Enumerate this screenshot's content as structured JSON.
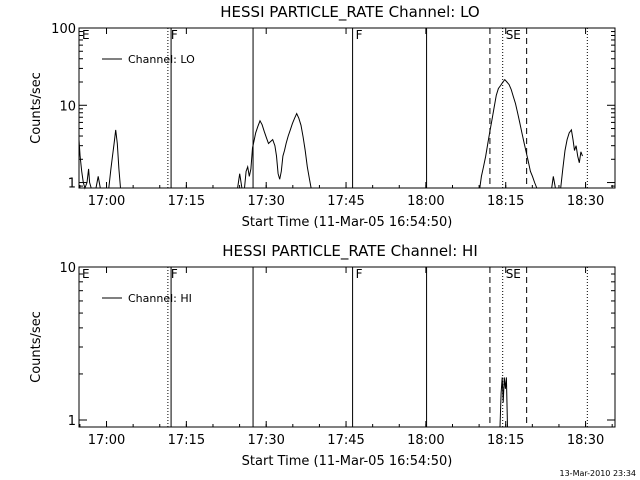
{
  "chart_data": [
    {
      "type": "line",
      "title": "HESSI PARTICLE_RATE Channel: LO",
      "xlabel": "Start Time (11-Mar-05 16:54:50)",
      "ylabel": "Counts/sec",
      "x_ticks": [
        "17:00",
        "17:15",
        "17:30",
        "17:45",
        "18:00",
        "18:15",
        "18:30"
      ],
      "x_tick_minutes": [
        5.17,
        20.17,
        35.17,
        50.17,
        65.17,
        80.17,
        95.17
      ],
      "xlim_minutes": [
        0,
        100.7
      ],
      "y_scale": "log",
      "ylim": [
        0.85,
        100
      ],
      "y_ticks": [
        "1",
        "10",
        "100"
      ],
      "y_tick_values": [
        1,
        10,
        100
      ],
      "legend": [
        {
          "name": "Channel: LO",
          "position": "top-left"
        }
      ],
      "series": [
        {
          "name": "Channel: LO",
          "segments": [
            [
              [
                0.0,
                3.6
              ],
              [
                0.2,
                2.2
              ],
              [
                0.5,
                1.4
              ],
              [
                0.8,
                1.0
              ],
              [
                1.1,
                0.85
              ],
              [
                1.5,
                1.0
              ],
              [
                1.8,
                1.5
              ],
              [
                2.0,
                1.0
              ],
              [
                2.3,
                0.85
              ]
            ],
            [
              [
                3.2,
                0.85
              ],
              [
                3.6,
                1.2
              ],
              [
                4.0,
                0.85
              ]
            ],
            [
              [
                5.6,
                0.85
              ],
              [
                6.0,
                1.5
              ],
              [
                6.3,
                2.2
              ],
              [
                6.6,
                3.2
              ],
              [
                6.9,
                4.8
              ],
              [
                7.2,
                3.2
              ],
              [
                7.5,
                1.5
              ],
              [
                7.8,
                0.85
              ]
            ],
            [
              [
                29.8,
                0.85
              ],
              [
                30.2,
                1.3
              ],
              [
                30.6,
                0.85
              ]
            ],
            [
              [
                31.1,
                0.85
              ],
              [
                31.4,
                1.4
              ],
              [
                31.7,
                1.6
              ],
              [
                32.0,
                1.2
              ],
              [
                32.3,
                1.5
              ],
              [
                32.6,
                2.8
              ],
              [
                32.9,
                3.5
              ],
              [
                33.2,
                4.4
              ],
              [
                33.6,
                5.3
              ],
              [
                34.0,
                6.3
              ],
              [
                34.4,
                5.6
              ],
              [
                34.8,
                4.6
              ],
              [
                35.2,
                3.8
              ],
              [
                35.6,
                3.2
              ],
              [
                36.0,
                3.4
              ],
              [
                36.4,
                3.6
              ],
              [
                36.8,
                3.0
              ],
              [
                37.1,
                2.2
              ],
              [
                37.4,
                1.3
              ],
              [
                37.7,
                1.1
              ],
              [
                38.0,
                1.4
              ],
              [
                38.3,
                2.2
              ],
              [
                38.6,
                2.6
              ],
              [
                38.9,
                3.2
              ],
              [
                39.3,
                4.0
              ],
              [
                39.7,
                4.8
              ],
              [
                40.1,
                5.8
              ],
              [
                40.5,
                6.8
              ],
              [
                40.9,
                7.8
              ],
              [
                41.3,
                6.8
              ],
              [
                41.7,
                5.5
              ],
              [
                42.1,
                3.9
              ],
              [
                42.5,
                2.6
              ],
              [
                42.9,
                1.6
              ],
              [
                43.3,
                1.1
              ],
              [
                43.6,
                0.85
              ]
            ],
            [
              [
                75.3,
                0.85
              ],
              [
                75.6,
                1.2
              ],
              [
                76.0,
                1.6
              ],
              [
                76.4,
                2.2
              ],
              [
                76.8,
                3.2
              ],
              [
                77.2,
                4.6
              ],
              [
                77.6,
                6.5
              ],
              [
                78.0,
                9.5
              ],
              [
                78.4,
                13.5
              ],
              [
                78.8,
                16.5
              ],
              [
                79.2,
                18.0
              ],
              [
                79.6,
                19.8
              ],
              [
                80.0,
                21.5
              ],
              [
                80.4,
                20.0
              ],
              [
                80.8,
                18.5
              ],
              [
                81.2,
                16.0
              ],
              [
                81.6,
                13.0
              ],
              [
                82.0,
                10.5
              ],
              [
                82.4,
                8.0
              ],
              [
                82.8,
                6.0
              ],
              [
                83.2,
                4.4
              ],
              [
                83.6,
                3.3
              ],
              [
                84.0,
                2.5
              ],
              [
                84.4,
                1.9
              ],
              [
                84.8,
                1.4
              ],
              [
                85.2,
                1.2
              ],
              [
                85.6,
                1.0
              ],
              [
                86.0,
                0.85
              ]
            ],
            [
              [
                88.8,
                0.85
              ],
              [
                89.1,
                1.2
              ],
              [
                89.5,
                0.85
              ]
            ],
            [
              [
                90.5,
                0.85
              ],
              [
                90.9,
                1.5
              ],
              [
                91.3,
                2.6
              ],
              [
                91.7,
                3.6
              ],
              [
                92.1,
                4.4
              ],
              [
                92.5,
                4.8
              ],
              [
                92.8,
                3.6
              ],
              [
                93.1,
                2.6
              ],
              [
                93.4,
                3.0
              ],
              [
                93.7,
                2.2
              ],
              [
                94.0,
                1.8
              ],
              [
                94.3,
                2.5
              ],
              [
                94.6,
                2.2
              ]
            ]
          ]
        }
      ],
      "markers": [
        {
          "label": "E",
          "minute": 0.0,
          "style": "none"
        },
        {
          "label": "F",
          "minute": 16.7,
          "style": "dotted"
        },
        {
          "label": "",
          "minute": 17.3,
          "style": "solid"
        },
        {
          "label": "",
          "minute": 32.7,
          "style": "solid"
        },
        {
          "label": "F",
          "minute": 51.4,
          "style": "solid"
        },
        {
          "label": "",
          "minute": 65.3,
          "style": "solid"
        },
        {
          "label": "",
          "minute": 77.2,
          "style": "dashed"
        },
        {
          "label": "SE",
          "minute": 79.6,
          "style": "dotted"
        },
        {
          "label": "",
          "minute": 84.1,
          "style": "dashed"
        },
        {
          "label": "",
          "minute": 95.5,
          "style": "dotted"
        }
      ]
    },
    {
      "type": "line",
      "title": "HESSI PARTICLE_RATE Channel: HI",
      "xlabel": "Start Time (11-Mar-05 16:54:50)",
      "ylabel": "Counts/sec",
      "x_ticks": [
        "17:00",
        "17:15",
        "17:30",
        "17:45",
        "18:00",
        "18:15",
        "18:30"
      ],
      "x_tick_minutes": [
        5.17,
        20.17,
        35.17,
        50.17,
        65.17,
        80.17,
        95.17
      ],
      "xlim_minutes": [
        0,
        100.7
      ],
      "y_scale": "log",
      "ylim": [
        0.9,
        10
      ],
      "y_ticks": [
        "1",
        "10"
      ],
      "y_tick_values": [
        1,
        10
      ],
      "legend": [
        {
          "name": "Channel: HI",
          "position": "top-left"
        }
      ],
      "series": [
        {
          "name": "Channel: HI",
          "segments": [
            [
              [
                79.1,
                0.9
              ],
              [
                79.3,
                1.5
              ],
              [
                79.5,
                1.9
              ],
              [
                79.7,
                1.3
              ],
              [
                79.9,
                1.9
              ],
              [
                80.1,
                1.6
              ],
              [
                80.3,
                1.9
              ],
              [
                80.5,
                0.9
              ]
            ]
          ]
        }
      ],
      "markers": [
        {
          "label": "E",
          "minute": 0.0,
          "style": "none"
        },
        {
          "label": "F",
          "minute": 16.7,
          "style": "dotted"
        },
        {
          "label": "",
          "minute": 17.3,
          "style": "solid"
        },
        {
          "label": "",
          "minute": 32.7,
          "style": "solid"
        },
        {
          "label": "F",
          "minute": 51.4,
          "style": "solid"
        },
        {
          "label": "",
          "minute": 65.3,
          "style": "solid"
        },
        {
          "label": "",
          "minute": 77.2,
          "style": "dashed"
        },
        {
          "label": "SE",
          "minute": 79.6,
          "style": "dotted"
        },
        {
          "label": "",
          "minute": 84.1,
          "style": "dashed"
        },
        {
          "label": "",
          "minute": 95.5,
          "style": "dotted"
        }
      ]
    }
  ],
  "footer": {
    "timestamp": "13-Mar-2010 23:34"
  }
}
